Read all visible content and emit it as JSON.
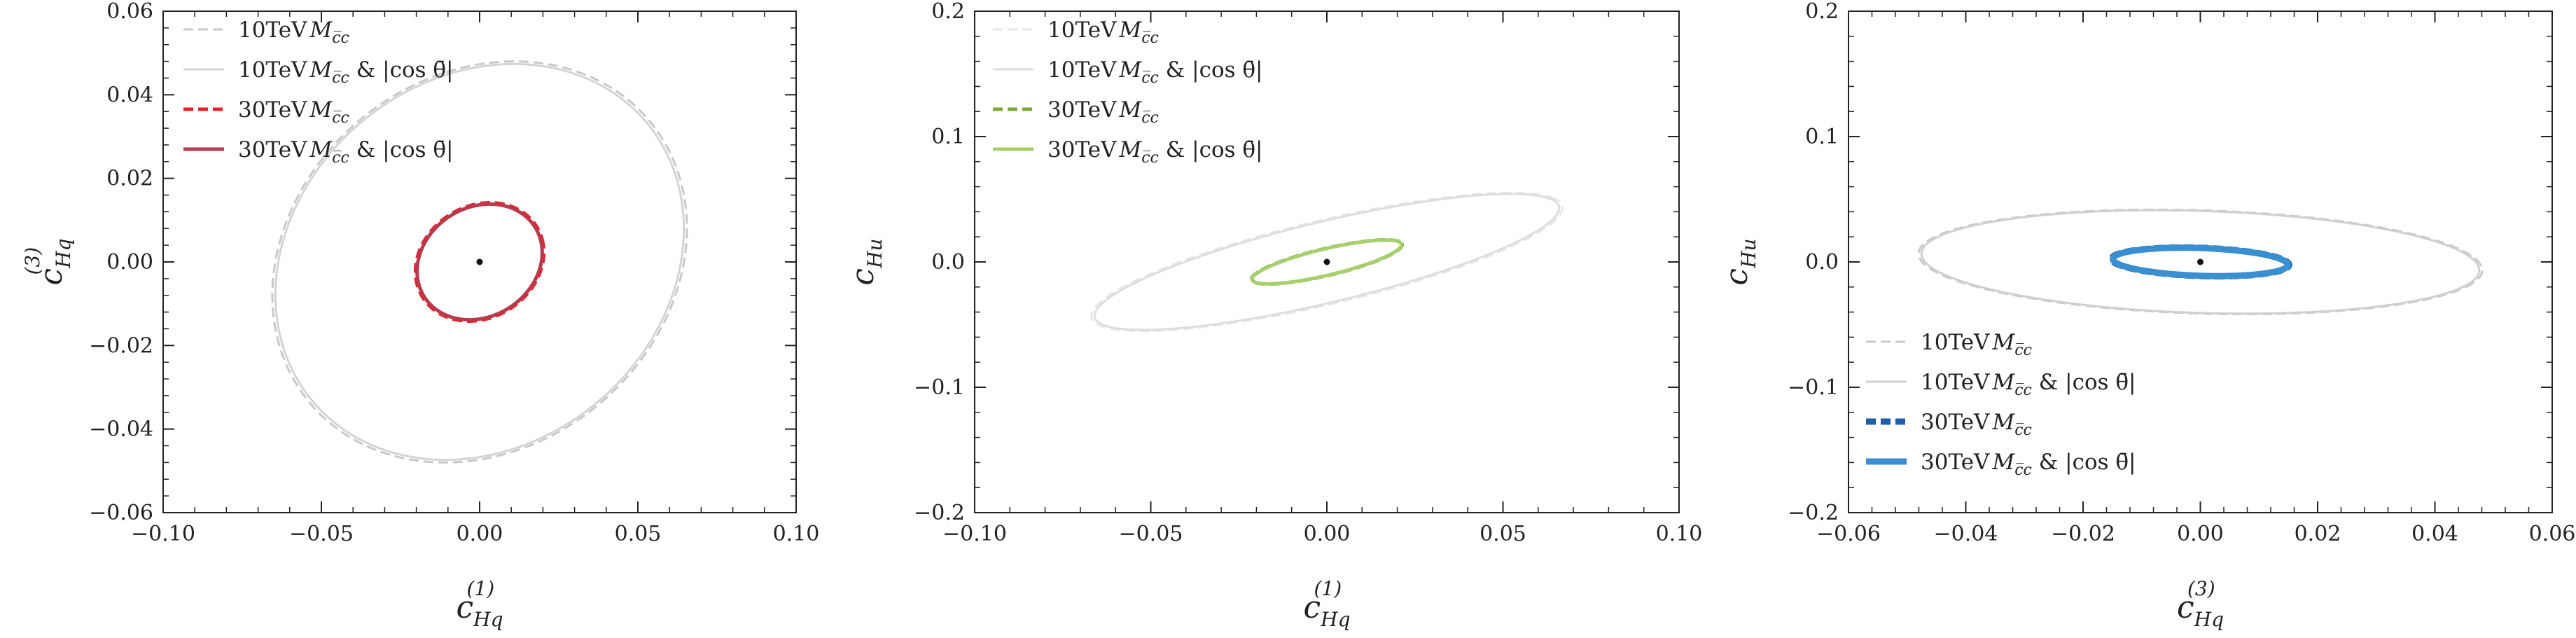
{
  "figure": {
    "panels": 3
  },
  "chart_data": [
    {
      "type": "line",
      "xlabel": "c_{Hq}^{(1)}",
      "ylabel": "c_{Hq}^{(3)}",
      "xlim": [
        -0.1,
        0.1
      ],
      "ylim": [
        -0.06,
        0.06
      ],
      "xticks": [
        -0.1,
        -0.05,
        0.0,
        0.05,
        0.1
      ],
      "xtick_labels": [
        "−0.10",
        "−0.05",
        "0.00",
        "0.05",
        "0.10"
      ],
      "yticks": [
        -0.06,
        -0.04,
        -0.02,
        0.0,
        0.02,
        0.04,
        0.06
      ],
      "ytick_labels": [
        "−0.06",
        "−0.04",
        "−0.02",
        "0.00",
        "0.02",
        "0.04",
        "0.06"
      ],
      "grid": false,
      "legend_position": "upper-left",
      "center_point": [
        0.0,
        0.0
      ],
      "series": [
        {
          "name": "10TeV M_{c̅c}",
          "style": "dashed",
          "color": "#c8c8c8",
          "ellipse": {
            "cx": 0.0,
            "cy": 0.0,
            "rx": 0.0665,
            "ry": 0.0466,
            "angle_deg": 14
          }
        },
        {
          "name": "10TeV M_{c̅c} & |cos θ̄|",
          "style": "solid",
          "color": "#d4d4d4",
          "ellipse": {
            "cx": 0.0,
            "cy": 0.0,
            "rx": 0.0655,
            "ry": 0.046,
            "angle_deg": 14
          }
        },
        {
          "name": "30TeV M_{c̅c}",
          "style": "dashed",
          "color": "#e8202a",
          "ellipse": {
            "cx": 0.0,
            "cy": 0.0,
            "rx": 0.0205,
            "ry": 0.0138,
            "angle_deg": 12
          }
        },
        {
          "name": "30TeV M_{c̅c} & |cos θ̄|",
          "style": "solid",
          "color": "#b83a4c",
          "ellipse": {
            "cx": 0.0,
            "cy": 0.0,
            "rx": 0.02,
            "ry": 0.0135,
            "angle_deg": 12
          }
        }
      ]
    },
    {
      "type": "line",
      "xlabel": "c_{Hq}^{(1)}",
      "ylabel": "c_{Hu}",
      "xlim": [
        -0.1,
        0.1
      ],
      "ylim": [
        -0.2,
        0.2
      ],
      "xticks": [
        -0.1,
        -0.05,
        0.0,
        0.05,
        0.1
      ],
      "xtick_labels": [
        "−0.10",
        "−0.05",
        "0.00",
        "0.05",
        "0.10"
      ],
      "yticks": [
        -0.2,
        -0.1,
        0.0,
        0.1,
        0.2
      ],
      "ytick_labels": [
        "−0.2",
        "−0.1",
        "0.0",
        "0.1",
        "0.2"
      ],
      "grid": false,
      "legend_position": "upper-left",
      "center_point": [
        0.0,
        0.0
      ],
      "series": [
        {
          "name": "10TeV M_{c̅c}",
          "style": "dashed",
          "color": "#e6e6e6",
          "ellipse": {
            "cx": 0.0,
            "cy": 0.0,
            "rx": 0.082,
            "ry": 0.028,
            "angle_deg": 38
          }
        },
        {
          "name": "10TeV M_{c̅c} & |cos θ̄|",
          "style": "solid",
          "color": "#dddddd",
          "ellipse": {
            "cx": 0.0,
            "cy": 0.0,
            "rx": 0.081,
            "ry": 0.027,
            "angle_deg": 38
          }
        },
        {
          "name": "30TeV M_{c̅c}",
          "style": "dashed",
          "color": "#7aa83a",
          "ellipse": {
            "cx": 0.0,
            "cy": 0.0,
            "rx": 0.0262,
            "ry": 0.009,
            "angle_deg": 38
          }
        },
        {
          "name": "30TeV M_{c̅c} & |cos θ̄|",
          "style": "solid",
          "color": "#a8cf6e",
          "ellipse": {
            "cx": 0.0,
            "cy": 0.0,
            "rx": 0.026,
            "ry": 0.0088,
            "angle_deg": 38
          }
        }
      ]
    },
    {
      "type": "line",
      "xlabel": "c_{Hq}^{(3)}",
      "ylabel": "c_{Hu}",
      "xlim": [
        -0.06,
        0.06
      ],
      "ylim": [
        -0.2,
        0.2
      ],
      "xticks": [
        -0.06,
        -0.04,
        -0.02,
        0.0,
        0.02,
        0.04,
        0.06
      ],
      "xtick_labels": [
        "−0.06",
        "−0.04",
        "−0.02",
        "0.00",
        "0.02",
        "0.04",
        "0.06"
      ],
      "yticks": [
        -0.2,
        -0.1,
        0.0,
        0.1,
        0.2
      ],
      "ytick_labels": [
        "−0.2",
        "−0.1",
        "0.0",
        "0.1",
        "0.2"
      ],
      "grid": false,
      "legend_position": "lower-left",
      "center_point": [
        0.0,
        0.0
      ],
      "series": [
        {
          "name": "10TeV M_{c̅c}",
          "style": "dashed",
          "color": "#c8c8c8",
          "ellipse": {
            "cx": 0.0,
            "cy": 0.0,
            "rx": 0.0495,
            "ry": 0.04,
            "angle_deg": -24
          }
        },
        {
          "name": "10TeV M_{c̅c} & |cos θ̄|",
          "style": "solid",
          "color": "#d0d0d0",
          "ellipse": {
            "cx": 0.0,
            "cy": 0.0,
            "rx": 0.049,
            "ry": 0.0395,
            "angle_deg": -24
          }
        },
        {
          "name": "30TeV M_{c̅c}",
          "style": "dashed",
          "color": "#1f5fa8",
          "ellipse": {
            "cx": 0.0,
            "cy": 0.0,
            "rx": 0.0155,
            "ry": 0.011,
            "angle_deg": -18
          }
        },
        {
          "name": "30TeV M_{c̅c} & |cos θ̄|",
          "style": "solid",
          "color": "#3a8fd0",
          "ellipse": {
            "cx": 0.0,
            "cy": 0.0,
            "rx": 0.0153,
            "ry": 0.0108,
            "angle_deg": -18
          }
        }
      ]
    }
  ]
}
